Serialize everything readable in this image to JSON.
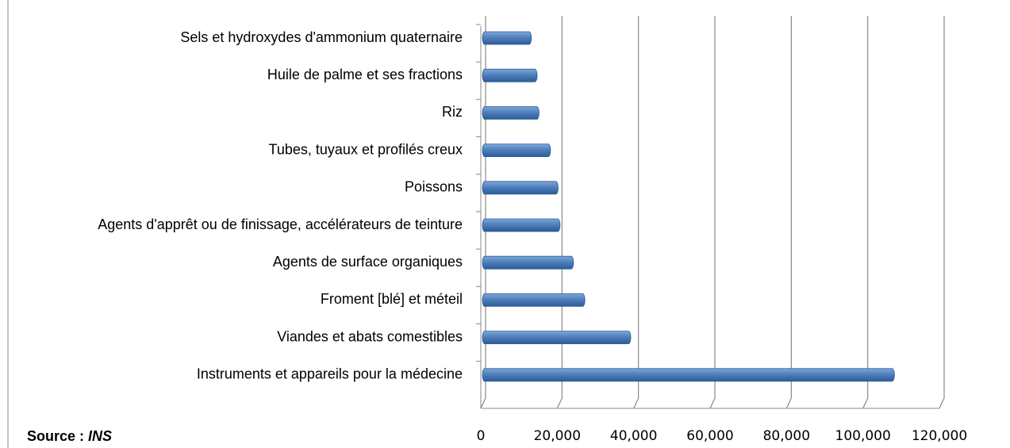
{
  "chart_data": {
    "type": "bar",
    "orientation": "horizontal",
    "categories": [
      "Sels et hydroxydes d'ammonium quaternaire",
      "Huile de palme et ses fractions",
      "Riz",
      "Tubes, tuyaux et profilés creux",
      "Poissons",
      "Agents d'apprêt ou de finissage, accélérateurs de teinture",
      "Agents de surface organiques",
      "Froment [blé] et méteil",
      "Viandes et abats comestibles",
      "Instruments et appareils pour la médecine"
    ],
    "values": [
      12000,
      13500,
      14000,
      17000,
      19000,
      19500,
      23000,
      26000,
      38000,
      107000
    ],
    "color": "#4f81bd",
    "xlim": [
      0,
      120000
    ],
    "xticks": [
      0,
      {
        "value": 20000,
        "label": "20,000"
      },
      {
        "value": 40000,
        "label": "40,000"
      },
      {
        "value": 60000,
        "label": "60,000"
      },
      {
        "value": 80000,
        "label": "80,000"
      },
      {
        "value": 100000,
        "label": "100,000"
      },
      {
        "value": 120000,
        "label": "120,000"
      }
    ],
    "grid": true,
    "source": {
      "label": "Source :",
      "name": "INS"
    }
  }
}
